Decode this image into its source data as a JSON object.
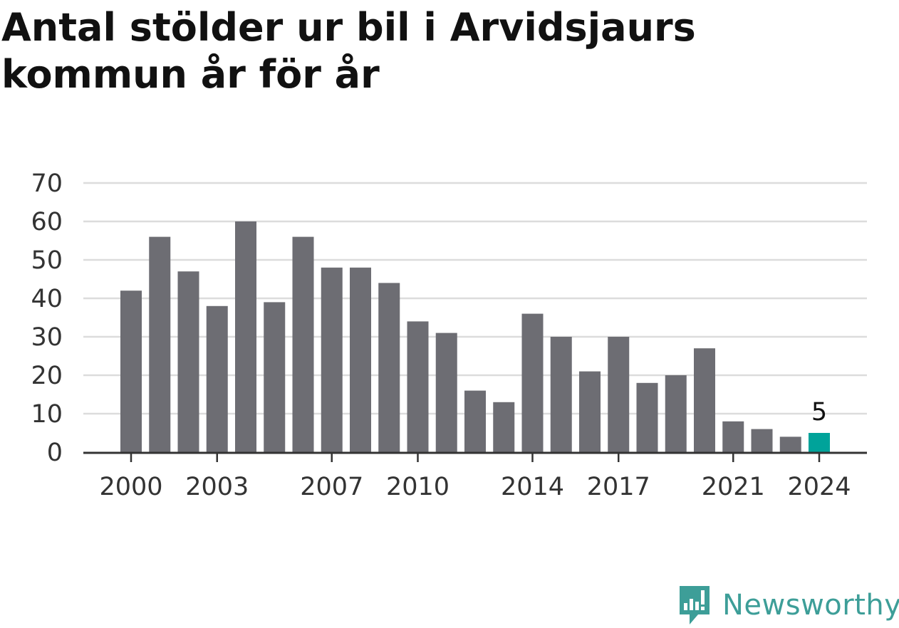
{
  "title": "Antal stölder ur bil i Arvidsjaurs kommun år för år",
  "brand": {
    "name": "Newsworthy",
    "icon": "newsworthy-logo-icon"
  },
  "colors": {
    "bar": "#6d6d73",
    "highlight": "#00a39a",
    "grid": "#dcdcdc",
    "axis": "#333333",
    "brand": "#3d9e98"
  },
  "chart_data": {
    "type": "bar",
    "categories": [
      "2000",
      "2001",
      "2002",
      "2003",
      "2004",
      "2005",
      "2006",
      "2007",
      "2008",
      "2009",
      "2010",
      "2011",
      "2012",
      "2013",
      "2014",
      "2015",
      "2016",
      "2017",
      "2018",
      "2019",
      "2020",
      "2021",
      "2022",
      "2023",
      "2024"
    ],
    "values": [
      42,
      56,
      47,
      38,
      60,
      39,
      56,
      48,
      48,
      44,
      34,
      31,
      16,
      13,
      36,
      30,
      21,
      30,
      18,
      20,
      27,
      8,
      6,
      4,
      5
    ],
    "x_tick_labels": [
      "2000",
      "2003",
      "2007",
      "2010",
      "2014",
      "2017",
      "2021",
      "2024"
    ],
    "y_ticks": [
      0,
      10,
      20,
      30,
      40,
      50,
      60,
      70
    ],
    "ylim": [
      0,
      70
    ],
    "highlight": {
      "category": "2024",
      "label": "5"
    },
    "grid": true,
    "xlabel": "",
    "ylabel": ""
  }
}
